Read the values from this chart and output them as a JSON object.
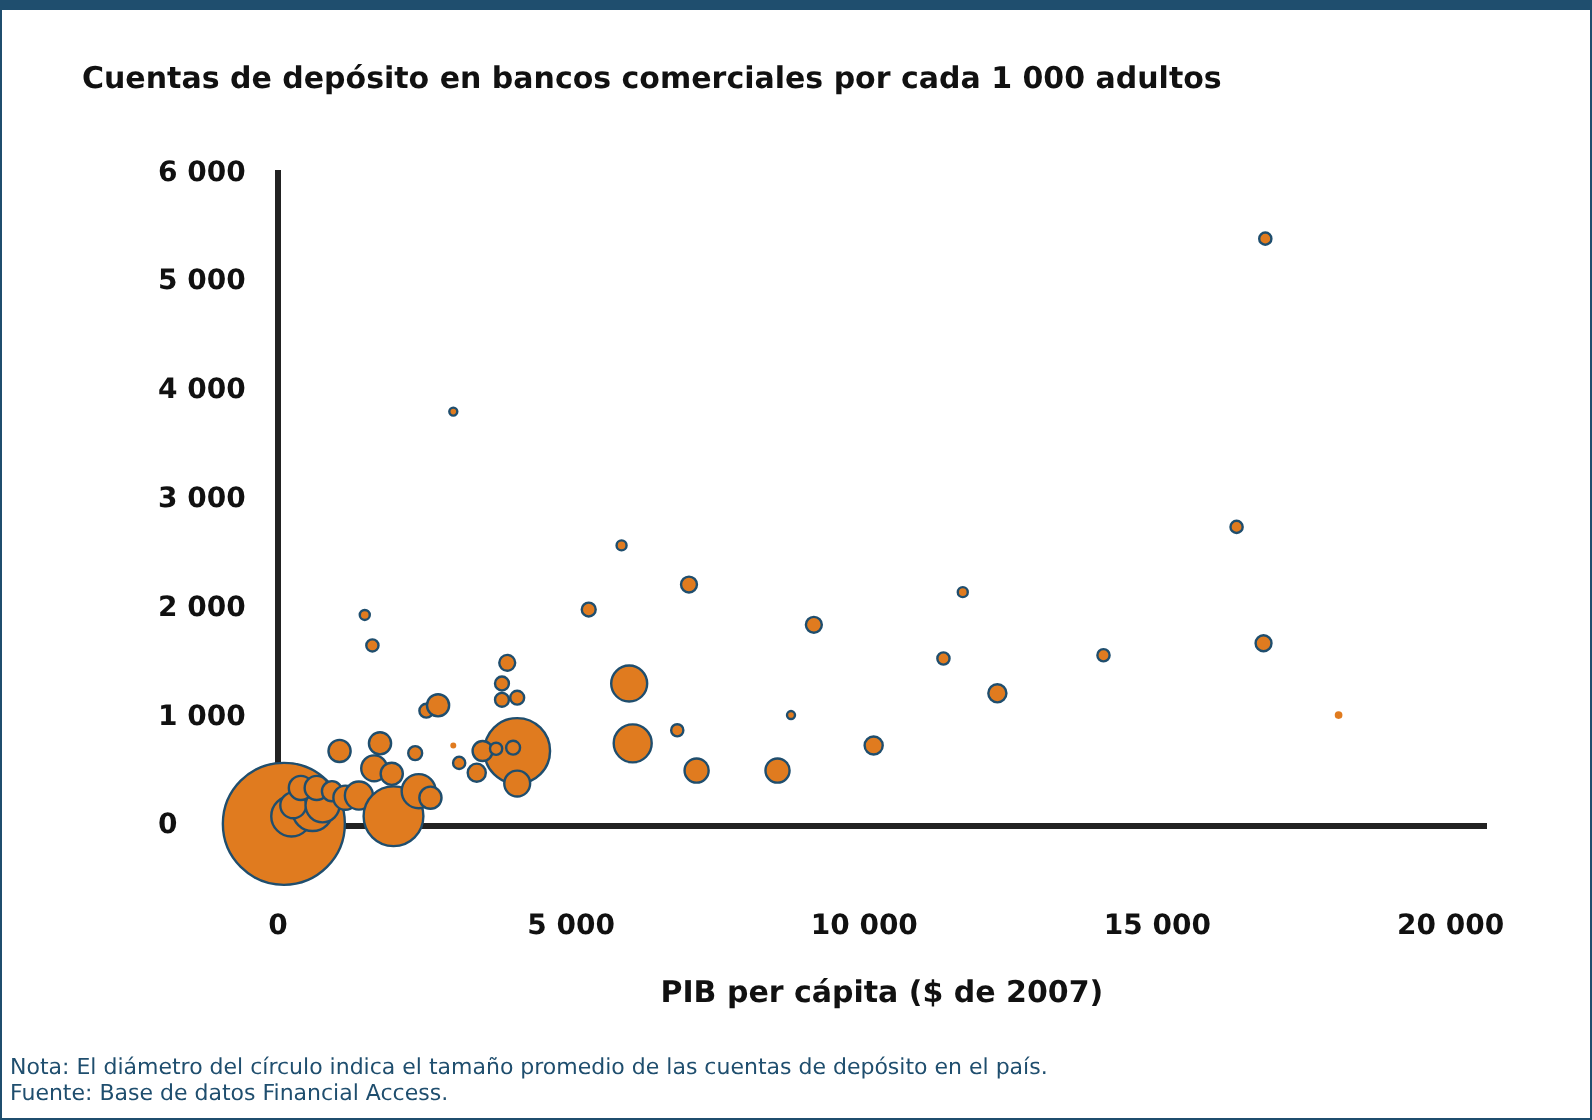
{
  "chart_data": {
    "type": "bubble",
    "ylabel": "Cuentas de depósito en bancos comerciales por cada 1 000 adultos",
    "xlabel": "PIB per cápita ($ de 2007)",
    "annotations": [
      "Nota: El diámetro del círculo indica el tamaño promedio de las cuentas de depósito en el país.",
      "Fuente: Base de datos Financial Access."
    ],
    "xlim": [
      0,
      20600
    ],
    "ylim": [
      0,
      6000
    ],
    "xticks": [
      {
        "value": 0,
        "label": "0"
      },
      {
        "value": 5000,
        "label": "5 000"
      },
      {
        "value": 10000,
        "label": "10 000"
      },
      {
        "value": 15000,
        "label": "15 000"
      },
      {
        "value": 20000,
        "label": "20 000"
      }
    ],
    "yticks": [
      {
        "value": 0,
        "label": "0"
      },
      {
        "value": 1000,
        "label": "1 000"
      },
      {
        "value": 2000,
        "label": "2 000"
      },
      {
        "value": 3000,
        "label": "3 000"
      },
      {
        "value": 4000,
        "label": "4 000"
      },
      {
        "value": 5000,
        "label": "5 000"
      },
      {
        "value": 6000,
        "label": "6 000"
      }
    ],
    "grid": false,
    "legend": false,
    "marker": "circle",
    "series": [
      {
        "color": "#e07b1f",
        "x": [
          100,
          230,
          4080,
          590,
          260,
          760,
          390,
          660,
          920,
          1150,
          1380,
          1970,
          2400,
          2600,
          1050,
          1740,
          1640,
          1940,
          2340,
          1610,
          2530,
          2730,
          2990,
          3090,
          3390,
          3490,
          3720,
          4010,
          4080,
          3910,
          3820,
          3820,
          4080,
          5990,
          6050,
          6810,
          7140,
          1480,
          5860,
          7010,
          5300,
          9140,
          11680,
          16350,
          11350,
          14080,
          16810,
          8750,
          8520,
          10160,
          12270,
          18090,
          2990,
          16840
        ],
        "values": [
          20,
          90,
          690,
          140,
          190,
          190,
          350,
          350,
          320,
          260,
          280,
          90,
          320,
          260,
          690,
          760,
          530,
          480,
          670,
          1660,
          1060,
          1110,
          740,
          580,
          490,
          690,
          710,
          720,
          390,
          1500,
          1310,
          1160,
          1180,
          1310,
          760,
          880,
          510,
          1940,
          2580,
          2220,
          1990,
          1850,
          2150,
          2750,
          1540,
          1570,
          1680,
          1020,
          510,
          740,
          1220,
          1020,
          3810,
          5400
        ],
        "sizes": [
          1,
          0.11,
          0.29,
          0.11,
          0.045,
          0.078,
          0.039,
          0.039,
          0.027,
          0.039,
          0.053,
          0.24,
          0.078,
          0.033,
          0.033,
          0.033,
          0.045,
          0.033,
          0.013,
          0.01,
          0.013,
          0.033,
          0.0024,
          0.01,
          0.022,
          0.027,
          0.01,
          0.013,
          0.045,
          0.017,
          0.013,
          0.013,
          0.013,
          0.087,
          0.097,
          0.01,
          0.039,
          0.0067,
          0.0067,
          0.017,
          0.013,
          0.017,
          0.0067,
          0.01,
          0.01,
          0.01,
          0.017,
          0.0043,
          0.039,
          0.022,
          0.022,
          0.004,
          0.0043,
          0.01
        ]
      }
    ]
  }
}
